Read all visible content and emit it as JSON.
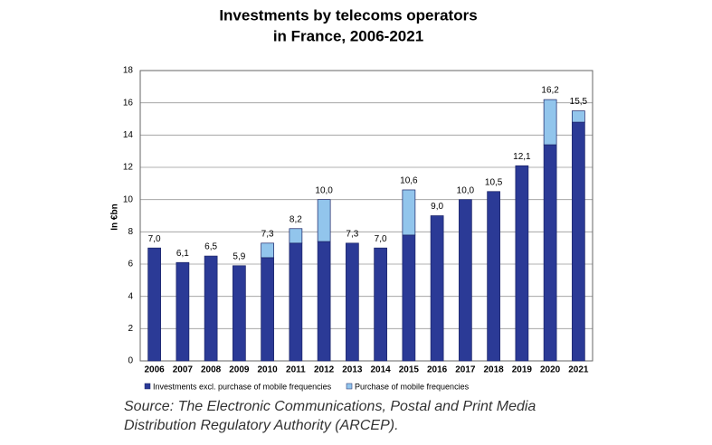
{
  "chart_data": {
    "type": "stacked-bar",
    "title": [
      "Investments by telecoms operators",
      "in France, 2006-2021"
    ],
    "y_label": "In €bn",
    "categories": [
      "2006",
      "2007",
      "2008",
      "2009",
      "2010",
      "2011",
      "2012",
      "2013",
      "2014",
      "2015",
      "2016",
      "2017",
      "2018",
      "2019",
      "2020",
      "2021"
    ],
    "series": [
      {
        "name": "Investments excl. purchase of mobile frequencies",
        "color": "#2b3a96",
        "values": [
          7.0,
          6.1,
          6.5,
          5.9,
          6.4,
          7.3,
          7.4,
          7.3,
          7.0,
          7.8,
          9.0,
          10.0,
          10.5,
          12.1,
          13.4,
          14.8
        ]
      },
      {
        "name": "Purchase of mobile frequencies",
        "color": "#92c5ec",
        "values": [
          null,
          null,
          null,
          null,
          0.9,
          0.9,
          2.6,
          null,
          null,
          2.8,
          null,
          null,
          null,
          null,
          2.8,
          0.7
        ]
      }
    ],
    "totals": {
      "values": [
        7.0,
        6.1,
        6.5,
        5.9,
        7.3,
        8.2,
        10.0,
        7.3,
        7.0,
        10.6,
        9.0,
        10.0,
        10.5,
        12.1,
        16.2,
        15.5
      ],
      "value_labels": [
        "7,0",
        "6,1",
        "6,5",
        "5,9",
        "7,3",
        "8,2",
        "10,0",
        "7,3",
        "7,0",
        "10,6",
        "9,0",
        "10,0",
        "10,5",
        "12,1",
        "16,2",
        "15,5"
      ]
    },
    "ylim": [
      0,
      18
    ],
    "yticks": [
      0,
      2,
      4,
      6,
      8,
      10,
      12,
      14,
      16,
      18
    ],
    "grid": true,
    "source": [
      "Source: The Electronic Communications, Postal and Print Media",
      "Distribution Regulatory Authority (ARCEP)."
    ]
  }
}
